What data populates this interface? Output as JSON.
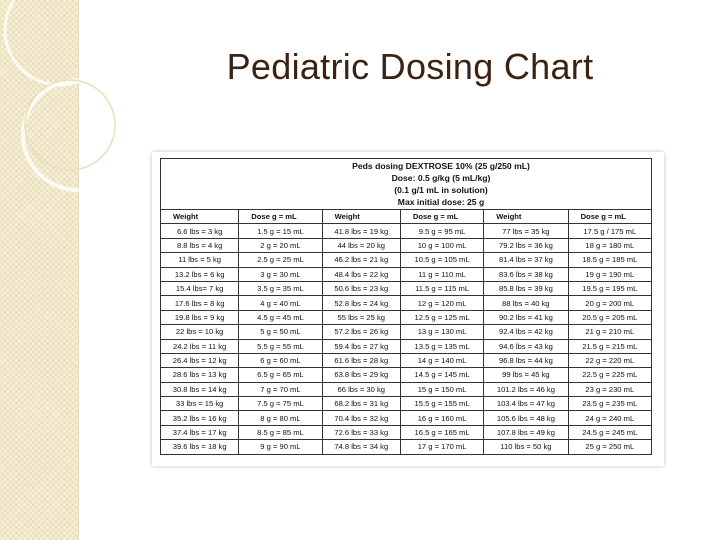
{
  "title": "Pediatric Dosing Chart",
  "table": {
    "caption": [
      "Peds dosing DEXTROSE 10% (25 g/250 mL)",
      "Dose: 0.5 g/kg (5 mL/kg)",
      "(0.1 g/1 mL in solution)",
      "Max initial dose: 25 g"
    ],
    "header": [
      "Weight",
      "Dose g = mL",
      "Weight",
      "Dose g = mL",
      "Weight",
      "Dose g = mL"
    ],
    "rows": [
      [
        "6.6 lbs = 3 kg",
        "1.5 g = 15 mL",
        "41.8 lbs = 19 kg",
        "9.5 g = 95 mL",
        "77 lbs = 35 kg",
        "17.5 g / 175 mL"
      ],
      [
        "8.8 lbs = 4 kg",
        "2 g = 20 mL",
        "44 lbs = 20 kg",
        "10 g = 100 mL",
        "79.2 lbs = 36 kg",
        "18 g = 180 mL"
      ],
      [
        "11 lbs = 5 kg",
        "2.5 g = 25 mL",
        "46.2 lbs = 21 kg",
        "10.5 g = 105 mL",
        "81.4 lbs = 37 kg",
        "18.5 g = 185 mL"
      ],
      [
        "13.2 lbs = 6 kg",
        "3 g = 30 mL",
        "48.4 lbs = 22 kg",
        "11 g = 110 mL",
        "83.6 lbs = 38 kg",
        "19 g = 190 mL"
      ],
      [
        "15.4 lbs= 7 kg",
        "3.5 g = 35 mL",
        "50.6 lbs = 23 kg",
        "11.5 g = 115 mL",
        "85.8 lbs = 39 kg",
        "19.5 g = 195 mL"
      ],
      [
        "17.6 lbs = 8 kg",
        "4 g = 40 mL",
        "52.8 lbs = 24 kg",
        "12 g = 120 mL",
        "88 lbs = 40 kg",
        "20 g = 200 mL"
      ],
      [
        "19.8 lbs = 9 kg",
        "4.5 g = 45 mL",
        "55 lbs = 25 kg",
        "12.5 g = 125 mL",
        "90.2 lbs = 41 kg",
        "20.5 g = 205 mL"
      ],
      [
        "22 lbs = 10 kg",
        "5 g = 50 mL",
        "57.2 lbs = 26 kg",
        "13 g = 130 mL",
        "92.4 lbs = 42 kg",
        "21 g = 210 mL"
      ],
      [
        "24.2 lbs = 11 kg",
        "5.5 g = 55 mL",
        "59.4 lbs = 27 kg",
        "13.5 g = 135 mL",
        "94.6 lbs = 43 kg",
        "21.5 g = 215 mL"
      ],
      [
        "26.4 lbs = 12 kg",
        "6 g = 60 mL",
        "61.6 lbs = 28 kg",
        "14 g = 140 mL",
        "96.8 lbs = 44 kg",
        "22 g = 220 mL"
      ],
      [
        "28.6 lbs = 13 kg",
        "6.5 g = 65 mL",
        "63.8 lbs = 29 kg",
        "14.5 g = 145 mL",
        "99 lbs = 45 kg",
        "22.5 g = 225 mL"
      ],
      [
        "30.8 lbs = 14 kg",
        "7 g = 70 mL",
        "66 lbs = 30 kg",
        "15 g = 150 mL",
        "101.2 lbs = 46 kg",
        "23 g = 230 mL"
      ],
      [
        "33 lbs = 15 kg",
        "7.5 g = 75 mL",
        "68.2 lbs = 31 kg",
        "15.5 g = 155 mL",
        "103.4 lbs = 47 kg",
        "23.5 g = 235 mL"
      ],
      [
        "35.2 lbs = 16 kg",
        "8 g = 80 mL",
        "70.4 lbs = 32 kg",
        "16 g = 160 mL",
        "105.6 lbs = 48 kg",
        "24 g = 240 mL"
      ],
      [
        "37.4 lbs = 17 kg",
        "8.5 g = 85 mL",
        "72.6 lbs = 33 kg",
        "16.5 g = 165 mL",
        "107.8 lbs = 49 kg",
        "24.5 g = 245 mL"
      ],
      [
        "39.6 lbs = 18 kg",
        "9 g = 90 mL",
        "74.8 lbs = 34 kg",
        "17 g = 170 mL",
        "110 lbs = 50 kg",
        "25 g = 250 mL"
      ]
    ]
  }
}
